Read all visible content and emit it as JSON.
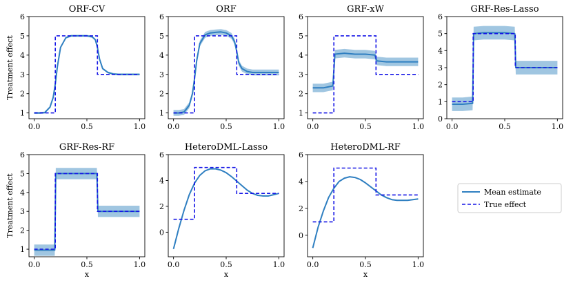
{
  "figure": {
    "legend_entries": [
      {
        "label": "Mean estimate",
        "style": "solid",
        "color": "#2f7fc1"
      },
      {
        "label": "True effect",
        "style": "dashed",
        "color": "#1515e6"
      }
    ],
    "colors": {
      "mean": "#2f7fc1",
      "band": "#8fbcdc",
      "true": "#1515e6"
    }
  },
  "chart_data": [
    {
      "type": "line",
      "title": "ORF-CV",
      "xlabel": "",
      "ylabel": "Treatment effect",
      "xlim": [
        -0.05,
        1.05
      ],
      "ylim": [
        0.7,
        6.0
      ],
      "xticks": [
        "0.0",
        "0.5",
        "1.0"
      ],
      "yticks": [
        "1",
        "2",
        "3",
        "4",
        "5",
        "6"
      ],
      "true_effect": {
        "x": [
          0,
          0.2,
          0.2,
          0.6,
          0.6,
          1.0
        ],
        "y": [
          1,
          1,
          5,
          5,
          3,
          3
        ]
      },
      "series": [
        {
          "name": "Mean estimate",
          "x": [
            0,
            0.05,
            0.1,
            0.15,
            0.18,
            0.2,
            0.22,
            0.25,
            0.3,
            0.35,
            0.4,
            0.45,
            0.5,
            0.55,
            0.58,
            0.6,
            0.62,
            0.65,
            0.7,
            0.75,
            0.8,
            0.9,
            1.0
          ],
          "y": [
            1.0,
            1.0,
            1.02,
            1.3,
            1.8,
            2.5,
            3.4,
            4.4,
            4.9,
            5.0,
            5.0,
            5.0,
            5.0,
            4.95,
            4.8,
            4.4,
            3.8,
            3.3,
            3.1,
            3.02,
            3.0,
            3.0,
            3.0
          ],
          "band": 0.05
        }
      ]
    },
    {
      "type": "line",
      "title": "ORF",
      "xlabel": "",
      "ylabel": "",
      "xlim": [
        -0.05,
        1.05
      ],
      "ylim": [
        0.7,
        6.0
      ],
      "xticks": [
        "0.0",
        "0.5",
        "1.0"
      ],
      "yticks": [
        "1",
        "2",
        "3",
        "4",
        "5",
        "6"
      ],
      "true_effect": {
        "x": [
          0,
          0.2,
          0.2,
          0.6,
          0.6,
          1.0
        ],
        "y": [
          1,
          1,
          5,
          5,
          3,
          3
        ]
      },
      "series": [
        {
          "name": "Mean estimate",
          "x": [
            0,
            0.05,
            0.1,
            0.15,
            0.18,
            0.2,
            0.22,
            0.25,
            0.3,
            0.35,
            0.4,
            0.45,
            0.5,
            0.55,
            0.58,
            0.6,
            0.62,
            0.65,
            0.7,
            0.75,
            0.8,
            0.9,
            1.0
          ],
          "y": [
            1.0,
            1.0,
            1.05,
            1.4,
            2.0,
            2.8,
            3.7,
            4.6,
            5.05,
            5.15,
            5.18,
            5.2,
            5.15,
            5.0,
            4.7,
            4.2,
            3.6,
            3.3,
            3.15,
            3.1,
            3.1,
            3.1,
            3.1
          ],
          "band": 0.15
        }
      ]
    },
    {
      "type": "line",
      "title": "GRF-xW",
      "xlabel": "",
      "ylabel": "",
      "xlim": [
        -0.05,
        1.05
      ],
      "ylim": [
        0.7,
        6.0
      ],
      "xticks": [
        "0.0",
        "0.5",
        "1.0"
      ],
      "yticks": [
        "1",
        "2",
        "3",
        "4",
        "5",
        "6"
      ],
      "true_effect": {
        "x": [
          0,
          0.2,
          0.2,
          0.6,
          0.6,
          1.0
        ],
        "y": [
          1,
          1,
          5,
          5,
          3,
          3
        ]
      },
      "series": [
        {
          "name": "Mean estimate",
          "x": [
            0,
            0.1,
            0.19,
            0.2,
            0.21,
            0.3,
            0.4,
            0.5,
            0.59,
            0.6,
            0.61,
            0.7,
            0.8,
            0.9,
            1.0
          ],
          "y": [
            2.3,
            2.3,
            2.4,
            3.2,
            4.05,
            4.1,
            4.05,
            4.05,
            4.0,
            3.8,
            3.7,
            3.65,
            3.65,
            3.65,
            3.65
          ],
          "band": 0.22
        }
      ]
    },
    {
      "type": "line",
      "title": "GRF-Res-Lasso",
      "xlabel": "",
      "ylabel": "",
      "xlim": [
        -0.05,
        1.05
      ],
      "ylim": [
        0.0,
        6.0
      ],
      "xticks": [
        "0.0",
        "0.5",
        "1.0"
      ],
      "yticks": [
        "0",
        "1",
        "2",
        "3",
        "4",
        "5",
        "6"
      ],
      "true_effect": {
        "x": [
          0,
          0.2,
          0.2,
          0.6,
          0.6,
          1.0
        ],
        "y": [
          1,
          1,
          5,
          5,
          3,
          3
        ]
      },
      "series": [
        {
          "name": "Mean estimate",
          "x": [
            0,
            0.1,
            0.195,
            0.2,
            0.205,
            0.3,
            0.4,
            0.5,
            0.595,
            0.6,
            0.605,
            0.7,
            0.8,
            0.9,
            1.0
          ],
          "y": [
            0.85,
            0.85,
            0.9,
            3.0,
            5.0,
            5.05,
            5.05,
            5.05,
            5.0,
            4.0,
            3.0,
            3.0,
            3.0,
            3.0,
            3.0
          ],
          "band": 0.4
        }
      ]
    },
    {
      "type": "line",
      "title": "GRF-Res-RF",
      "xlabel": "x",
      "ylabel": "Treatment effect",
      "xlim": [
        -0.05,
        1.05
      ],
      "ylim": [
        0.6,
        6.0
      ],
      "xticks": [
        "0.0",
        "0.5",
        "1.0"
      ],
      "yticks": [
        "1",
        "2",
        "3",
        "4",
        "5",
        "6"
      ],
      "true_effect": {
        "x": [
          0,
          0.2,
          0.2,
          0.6,
          0.6,
          1.0
        ],
        "y": [
          1,
          1,
          5,
          5,
          3,
          3
        ]
      },
      "series": [
        {
          "name": "Mean estimate",
          "x": [
            0,
            0.1,
            0.195,
            0.2,
            0.205,
            0.3,
            0.4,
            0.5,
            0.595,
            0.6,
            0.605,
            0.7,
            0.8,
            0.9,
            1.0
          ],
          "y": [
            0.95,
            0.95,
            0.95,
            3.0,
            5.0,
            5.0,
            5.0,
            5.0,
            5.0,
            4.0,
            3.0,
            3.0,
            3.0,
            3.0,
            3.0
          ],
          "band": 0.3
        }
      ]
    },
    {
      "type": "line",
      "title": "HeteroDML-Lasso",
      "xlabel": "x",
      "ylabel": "",
      "xlim": [
        -0.05,
        1.05
      ],
      "ylim": [
        -1.9,
        6.0
      ],
      "xticks": [
        "0.0",
        "0.5",
        "1.0"
      ],
      "yticks": [
        "0",
        "2",
        "4",
        "6"
      ],
      "true_effect": {
        "x": [
          0,
          0.2,
          0.2,
          0.6,
          0.6,
          1.0
        ],
        "y": [
          1,
          1,
          5,
          5,
          3,
          3
        ]
      },
      "series": [
        {
          "name": "Mean estimate",
          "x": [
            0,
            0.05,
            0.1,
            0.15,
            0.2,
            0.25,
            0.3,
            0.35,
            0.4,
            0.45,
            0.5,
            0.55,
            0.6,
            0.65,
            0.7,
            0.75,
            0.8,
            0.85,
            0.9,
            0.95,
            1.0
          ],
          "y": [
            -1.3,
            0.3,
            1.7,
            2.9,
            3.8,
            4.4,
            4.75,
            4.9,
            4.9,
            4.8,
            4.6,
            4.3,
            3.95,
            3.6,
            3.25,
            3.0,
            2.85,
            2.8,
            2.8,
            2.9,
            3.0
          ],
          "band": 0.04
        }
      ]
    },
    {
      "type": "line",
      "title": "HeteroDML-RF",
      "xlabel": "x",
      "ylabel": "",
      "xlim": [
        -0.05,
        1.05
      ],
      "ylim": [
        -1.6,
        6.0
      ],
      "xticks": [
        "0.0",
        "0.5",
        "1.0"
      ],
      "yticks": [
        "0",
        "2",
        "4",
        "6"
      ],
      "true_effect": {
        "x": [
          0,
          0.2,
          0.2,
          0.6,
          0.6,
          1.0
        ],
        "y": [
          1,
          1,
          5,
          5,
          3,
          3
        ]
      },
      "series": [
        {
          "name": "Mean estimate",
          "x": [
            0,
            0.05,
            0.1,
            0.15,
            0.2,
            0.25,
            0.3,
            0.35,
            0.4,
            0.45,
            0.5,
            0.55,
            0.6,
            0.65,
            0.7,
            0.75,
            0.8,
            0.85,
            0.9,
            0.95,
            1.0
          ],
          "y": [
            -0.95,
            0.6,
            1.8,
            2.8,
            3.5,
            4.0,
            4.25,
            4.35,
            4.3,
            4.15,
            3.9,
            3.6,
            3.3,
            3.0,
            2.8,
            2.65,
            2.6,
            2.6,
            2.6,
            2.65,
            2.7
          ],
          "band": 0.04
        }
      ]
    }
  ]
}
